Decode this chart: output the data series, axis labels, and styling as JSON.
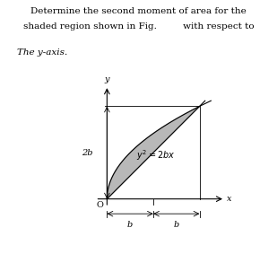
{
  "title_line1": "Determine the second moment of area for the",
  "title_line2": "shaded region shown in Fig.         with respect to",
  "subtitle": "The y-axis.",
  "equation_label": "$y^2 = 2bx$",
  "x_label": "x",
  "y_label": "y",
  "origin_label": "O",
  "y_tick_label": "2b",
  "x_dim_label1": "b",
  "x_dim_label2": "b",
  "background_color": "#ffffff",
  "shaded_color": "#a0a0a0",
  "shaded_alpha": 0.75,
  "line_color": "#000000",
  "b_value": 2.0,
  "figsize": [
    3.09,
    2.83
  ],
  "dpi": 100
}
